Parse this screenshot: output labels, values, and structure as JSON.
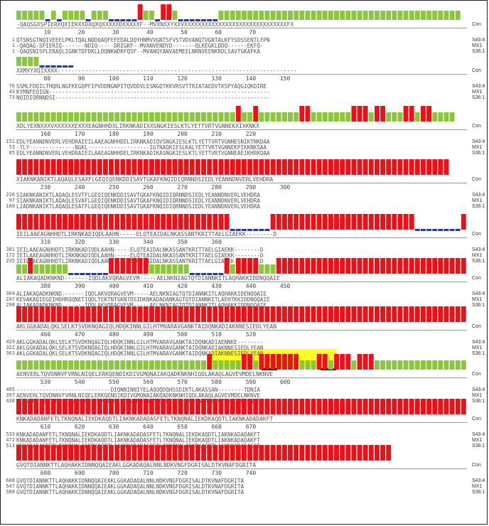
{
  "colors": {
    "conserved": "#e8121a",
    "similar": "#8cc63f",
    "gap": "#2b3a8e",
    "highlight": "#ffff2a"
  },
  "seq_labels": [
    "S43:4",
    "MX1",
    "S36:1"
  ],
  "con_label": "Con",
  "blocks": [
    {
      "bars": "ggggg.g.gggg.ggg.....rgg.rrg.......gggggggggggggggggggggggggggggggggggggggggg",
      "consensus": "-QAQSGXSPIERXQXIERXXDXQXQXXXXXDXXXXXF--MVXNXXYXXVXXXXXXXXXXXXXXXXXXXXXXXXXXXXXXFX",
      "ticks": "        10        20        30        40        50        60        70",
      "starts": [
        "1",
        "1",
        "1"
      ],
      "seqs": [
        "QTSNSGTNQIVEEFLPKLTQALNDDQAQFEFEDALDQYHNMVVGNTSFVSTVDVANQTVGNTALKFYSDSSENTLFPN",
        "-QAQAG-SPIERIQ-------NDIQ-----DRIGKF--MVANVENDYD-------QLKEGKLDDQ------EKFQ-",
        "-QAQSNISPLERAQLIGNKTDFDKLLDQNKWDRFQSF--MVANQYANVAEMEELNKNVEENKRDLSAVTGKAFKA"
      ]
    },
    {
      "bars": "gggg......",
      "consensus": "XXMXYXQIXXXX----------------------------------------------------------------------",
      "ticks": "        80        90       100       110       120       130       140       150",
      "starts": [
        "76",
        "43",
        "73"
      ],
      "seqs": [
        "SSMLFDQILTHQRLNGFKEGQPFIPVDDNGNPITQVDDVLESNGQTKKVRSVTTRIATAEDVTKSPYAQGIQKDIRE",
        "KYMNFEQIGN--------------------------------------------------------------------",
        "NQIDIQRNNDSI------------------------------------------------------------------"
      ]
    },
    {
      "bars": "ggggggggggggggggggggggggggggggggggggggrggrgggggggrrgggggggrrrgrrgggrrgrrgggg",
      "consensus": "XDLYEXNXXXVXXXXXXEXXXEAGNHHDXLIRKNKADIXXSNGKIESLKTLYETTVRTVGNNEKXIXKNKX",
      "ticks": "       160       170       180       190       200       210       220",
      "starts": [
        "151",
        "53",
        "85"
      ],
      "seqs": [
        "EDLYEANNDNVERLVEHDRAIEILAAEAGNHHDELIRKNKADIQVSNGKIESLKTLYETTVRTVGNNESNIKTNKDAA",
        "-TLY--------------NGKL-------------------IGTNAQKIESLKALYETTVRTVGNNEKPIKKNKSAA",
        "EDLYEANNDNVERLVEHDRAIEILAAEAGNHHDELIRKNKADIKASNGKIESLKTLYETTVRTVGNNEAEIKHRKQAA"
      ]
    },
    {
      "bars": "rrrrrrrrrrrrrrrrrrrrrrrrrrrrrrrrrrrrrrrrrrrrrrrrrrrrrrrrrrrrrrrrrrrrrrrrrrr",
      "consensus": "XIAKNKANIKTLAQAQLESAXFLGEQIQENKDDISAVTGKAFKNQIDIQRNNDSIEDLYEANNDNVERLVEHDRA",
      "ticks": "       230       240       250       260       270       280       290       300",
      "starts": [
        "226",
        "97",
        "160"
      ],
      "seqs": [
        "SIAKNKANIKTLAQAQLESVTFLGEQIQENKDDISAVTGKAFKNQIDIQRNNDSIEDLYEANNDNVERLVEHDRA",
        "SIAKNKANIKTLAQAQLESVAFLGEQIQENKDDISAVTGKAFKNQIDIQRNNDSIEDLYEANNDNVERLVEHDRA",
        "LIADNKANIKTLAQAQLESATFLGEQIQENKDDISAVTGKAFKNQIDIQRNNDSIEDLYEANNDNVERLVEHDRA"
      ]
    },
    {
      "bars": "rrrrrrrrrrrrrrrrrrrrrrrrrrrrrrrrrrrrr.......rrrrrrrrrrrrrrrrrrrrrrrrr........r",
      "consensus": "IEILAAEAGNHHDTLIRKNKADIQDLAAHN-----ELQTEAIDALNKASSANTKRITTAELGIAEKK--------D",
      "ticks": "       310       320       330       340       350       360",
      "starts": [
        "301",
        "172",
        "235"
      ],
      "seqs": [
        "IEILAAEAGNHHDTLIRKNKADIQDLAAHN-----ELQTEAIDALNKASSANTKRITTAELGIAEKK--------D",
        "IEILAAEAGNHHDTLIRKNKADIQDLAAHN-----ELQTEAIDALNKASSANTKRITTAELGIAEKK--------D",
        "IEILAAEAGNHHDTLIRKNKADIQDLAAHN-----ELQTEAIDALNKASSANTKRITTAELGIAEKK--------D"
      ]
    },
    {
      "bars": "ggrgggggg.......rrrrrrrggggggg......rgrrrrgggrrrrrrrrrrrrrrrrrrrrrrrrrrrrrrrrr",
      "consensus": "ALIAKAQADKNKND-------IQDLAKVQRAGVEVM-----AELNKNIAGTQTDIANNKITLAQHAKKIDDNQQAIE",
      "ticks": "       380       390       400       410       420       430       440       450",
      "starts": [
        "364",
        "247",
        "298"
      ],
      "seqs": [
        "ALIAKAQADKNKND-------IQDLAKVQRAGVEVM-----AELNKNIAGTQTDIANNKITLAQHAKKIDENQQAIE",
        "KEVAKAQIEGEIHDHRQQNETIQDLTEKTNTSKNTDSIDKNKADADANKAGTQTDIANNKITLAEHTKKIDDNQQAIE",
        "ALIAKAQADKNKND-------IQDLAKVQRAGVEVM-----AELNKNIAGTQTDIANNKITLAQHAKKIDDNQQAIE"
      ]
    },
    {
      "bars": "rrrrrrrrrrrrrrrrrrrrrrrrrrrrrrrrrrrrrrrrrrrrrrrrrrrrrrrrrrrrrrrrrrrrrrrrrrrrrr",
      "consensus": "AKLGGKADALQKLSELKTSVDKNQAGIQLHDQKINNLGILHTMVARAVGANKTAIDQNKADIAKNNESIEDLYEAN",
      "ticks": "       460       470       480       490       500       510       520",
      "starts": [
        "429",
        "322",
        "363"
      ],
      "seqs": [
        "AKLGGKADALQKLSELKTSVDKNQAGIQLHDQKINNLGILHTMVARAVGANKTAIDQNKADIAENNKE--------",
        "AKLGGKADALQKLSELKTSVDKNQAGIQLHDQKINNLGILHTMVARAVGANKTAIDQNKADIAKNNESIEDLYEAN",
        "AKLGGKADALQKLSELKTSVDKNQAGIQLHDQKINNLGILHTMVARAVGANKTAIDQNKADIAKNNESIEDLYEAN"
      ]
    },
    {
      "bars": "gggggggggggggggggggggggggggggggggrgggggrrgrrrrrrrgggrrgrrrgrrrgggggggggggggggg",
      "consensus": "AENVERLTQVDNNVFVRNLNIQELERKQENDIKDIVGMQNAIAKQADKNKNHIQDLAKAQLAGVEVMDELNKNVE",
      "ticks": "       530       540       550       560       570       580       590       600",
      "starts": [
        "495",
        "397",
        "438"
      ],
      "seqs": [
        "-----------------------------DIQNNINNIYELAQQQDQHSSDIKTLAKASSAN--------TDNIA",
        "AENVERLTQVDNNVFVRNLNIQELERKQENDIKDIVGMQNAIAKQADKNKNHIQDLAKAQLAGVEVMDELNKNVE",
        "AENVERLTQVDNNVFVRNLNIQELERKQENDIKDIVGMQNAIAKQADKNKNHIQDLAKAQLAGVEVMDELNKNVE"
      ]
    },
    {
      "bars": "rrrrrrrrrrrrrrrrrrrrrrrrrrrrrrrrrrrrrrrrrrrrrrrrrrrrrrrrrrrrrrrrrrrrrrrrrrrrrr",
      "consensus": "KNKADADANFETLTKNQNALIEKDKAQDTLIAKNKADADASFETLTKNQNALIEKDKAQDTLIAKNKADADAKFT",
      "ticks": "       610       620       630       640       650       660       670",
      "starts": [
        "533",
        "472",
        "513"
      ],
      "seqs": [
        "KNKADADANFETLTKNQNALIEKDKAQDTLIAKNKADADASFETLTKNQNALIEKDKAQDTLIAKNKADADAKFT",
        "KNKADADANFETLTKNQNALIEKDKAQDTLIAKNKADADASFETLTKNQNALIEKDKAQDTLIAKNKADADAKFT",
        "KNKADADANFETLTKNQNALIEKDKAQDTLIAKNKADADASFETLTKNQNALIEKDKAQDTLIAKNKADADAKFT"
      ]
    },
    {
      "bars": "rrrrrrrrrrrrrrrrrrrrrrrrrrrrrrrrrrrrrrrrrrrrrrrrrrrrrrrrrrrrrrrrr",
      "consensus": "GVQTDIANNKTTLAQHAKKIDNNQQAIEAKLGGKADAQALNNLNDKVNGFDGRISALDTKVNAFDGRITA",
      "ticks": "       680       690       700       710       720       730       740",
      "starts": [
        "608",
        "547",
        "588"
      ],
      "seqs": [
        "GVQTDIANNKTTLAQHAKKIDNNQQAIEAKLGGKADAQALNNLNDKVNGFDGRISALDTKVNAFDGRITA",
        "GVQTDIANNKTTLAQHAKKIDNNQQAIEAKLGGKADAQALNNLNDKVNGFDGRISALDTKVNAFDGRITA",
        "GVQTDIANNKTTLAQHAKKIDNNQQAIEAKLGGKADAQALNNLNDKVNGFDGRISALDTKVNAFDGRITA"
      ]
    }
  ]
}
